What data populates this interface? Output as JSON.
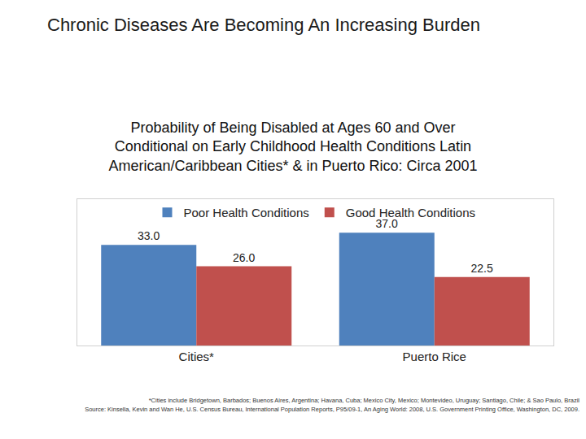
{
  "heading": "Chronic Diseases Are Becoming An Increasing Burden",
  "chart_data": {
    "type": "bar",
    "title": [
      "Probability of Being Disabled at Ages 60 and Over",
      "Conditional on Early Childhood Health Conditions Latin",
      "American/Caribbean Cities* & in Puerto Rico: Circa 2001"
    ],
    "categories": [
      "Cities*",
      "Puerto Rice"
    ],
    "series": [
      {
        "name": "Poor Health Conditions",
        "color": "#4f81bd",
        "values": [
          33,
          37
        ],
        "value_labels": [
          "33.0",
          "37.0"
        ]
      },
      {
        "name": "Good Health Conditions",
        "color": "#c0504d",
        "values": [
          26,
          22.5
        ],
        "value_labels": [
          "26.0",
          "22.5"
        ]
      }
    ],
    "ylim": [
      0,
      48
    ],
    "data_labels": true,
    "tick_labels": "x",
    "legend": "top",
    "grid": false
  },
  "footnotes": [
    "*Cities include Bridgetown, Barbados; Buenos Aires, Argentina; Havana, Cuba; Mexico City, Mexico; Montevideo, Uruguay; Santiago, Chile; & Sao Paulo, Brazil",
    "Source: Kinsella, Kevin and Wan He, U.S. Census Bureau, International Population Reports, P95/09-1, An Aging World: 2008, U.S. Government Printing Office, Washington, DC, 2009."
  ]
}
